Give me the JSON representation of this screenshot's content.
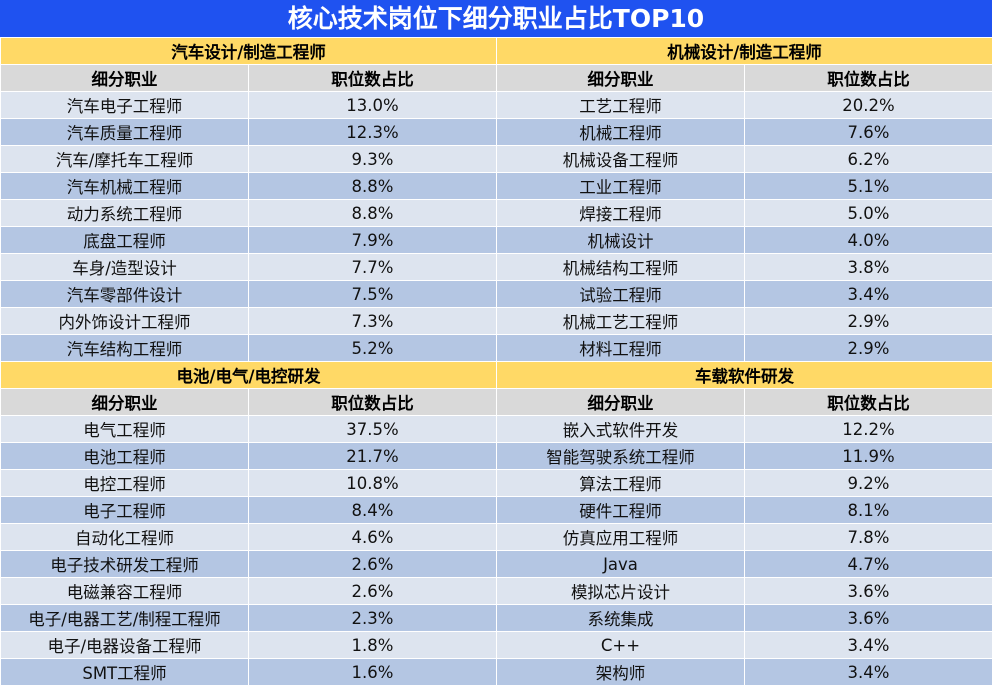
{
  "title": "核心技术岗位下细分职业占比TOP10",
  "columns": {
    "job": "细分职业",
    "share": "职位数占比"
  },
  "sections": [
    {
      "name": "汽车设计/制造工程师",
      "rows": [
        {
          "job": "汽车电子工程师",
          "share": "13.0%"
        },
        {
          "job": "汽车质量工程师",
          "share": "12.3%"
        },
        {
          "job": "汽车/摩托车工程师",
          "share": "9.3%"
        },
        {
          "job": "汽车机械工程师",
          "share": "8.8%"
        },
        {
          "job": "动力系统工程师",
          "share": "8.8%"
        },
        {
          "job": "底盘工程师",
          "share": "7.9%"
        },
        {
          "job": "车身/造型设计",
          "share": "7.7%"
        },
        {
          "job": "汽车零部件设计",
          "share": "7.5%"
        },
        {
          "job": "内外饰设计工程师",
          "share": "7.3%"
        },
        {
          "job": "汽车结构工程师",
          "share": "5.2%"
        }
      ]
    },
    {
      "name": "机械设计/制造工程师",
      "rows": [
        {
          "job": "工艺工程师",
          "share": "20.2%"
        },
        {
          "job": "机械工程师",
          "share": "7.6%"
        },
        {
          "job": "机械设备工程师",
          "share": "6.2%"
        },
        {
          "job": "工业工程师",
          "share": "5.1%"
        },
        {
          "job": "焊接工程师",
          "share": "5.0%"
        },
        {
          "job": "机械设计",
          "share": "4.0%"
        },
        {
          "job": "机械结构工程师",
          "share": "3.8%"
        },
        {
          "job": "试验工程师",
          "share": "3.4%"
        },
        {
          "job": "机械工艺工程师",
          "share": "2.9%"
        },
        {
          "job": "材料工程师",
          "share": "2.9%"
        }
      ]
    },
    {
      "name": "电池/电气/电控研发",
      "rows": [
        {
          "job": "电气工程师",
          "share": "37.5%"
        },
        {
          "job": "电池工程师",
          "share": "21.7%"
        },
        {
          "job": "电控工程师",
          "share": "10.8%"
        },
        {
          "job": "电子工程师",
          "share": "8.4%"
        },
        {
          "job": "自动化工程师",
          "share": "4.6%"
        },
        {
          "job": "电子技术研发工程师",
          "share": "2.6%"
        },
        {
          "job": "电磁兼容工程师",
          "share": "2.6%"
        },
        {
          "job": "电子/电器工艺/制程工程师",
          "share": "2.3%"
        },
        {
          "job": "电子/电器设备工程师",
          "share": "1.8%"
        },
        {
          "job": "SMT工程师",
          "share": "1.6%"
        }
      ]
    },
    {
      "name": "车载软件研发",
      "rows": [
        {
          "job": "嵌入式软件开发",
          "share": "12.2%"
        },
        {
          "job": "智能驾驶系统工程师",
          "share": "11.9%"
        },
        {
          "job": "算法工程师",
          "share": "9.2%"
        },
        {
          "job": "硬件工程师",
          "share": "8.1%"
        },
        {
          "job": "仿真应用工程师",
          "share": "7.8%"
        },
        {
          "job": "Java",
          "share": "4.7%"
        },
        {
          "job": "模拟芯片设计",
          "share": "3.6%"
        },
        {
          "job": "系统集成",
          "share": "3.6%"
        },
        {
          "job": "C++",
          "share": "3.4%"
        },
        {
          "job": "架构师",
          "share": "3.4%"
        }
      ]
    }
  ]
}
